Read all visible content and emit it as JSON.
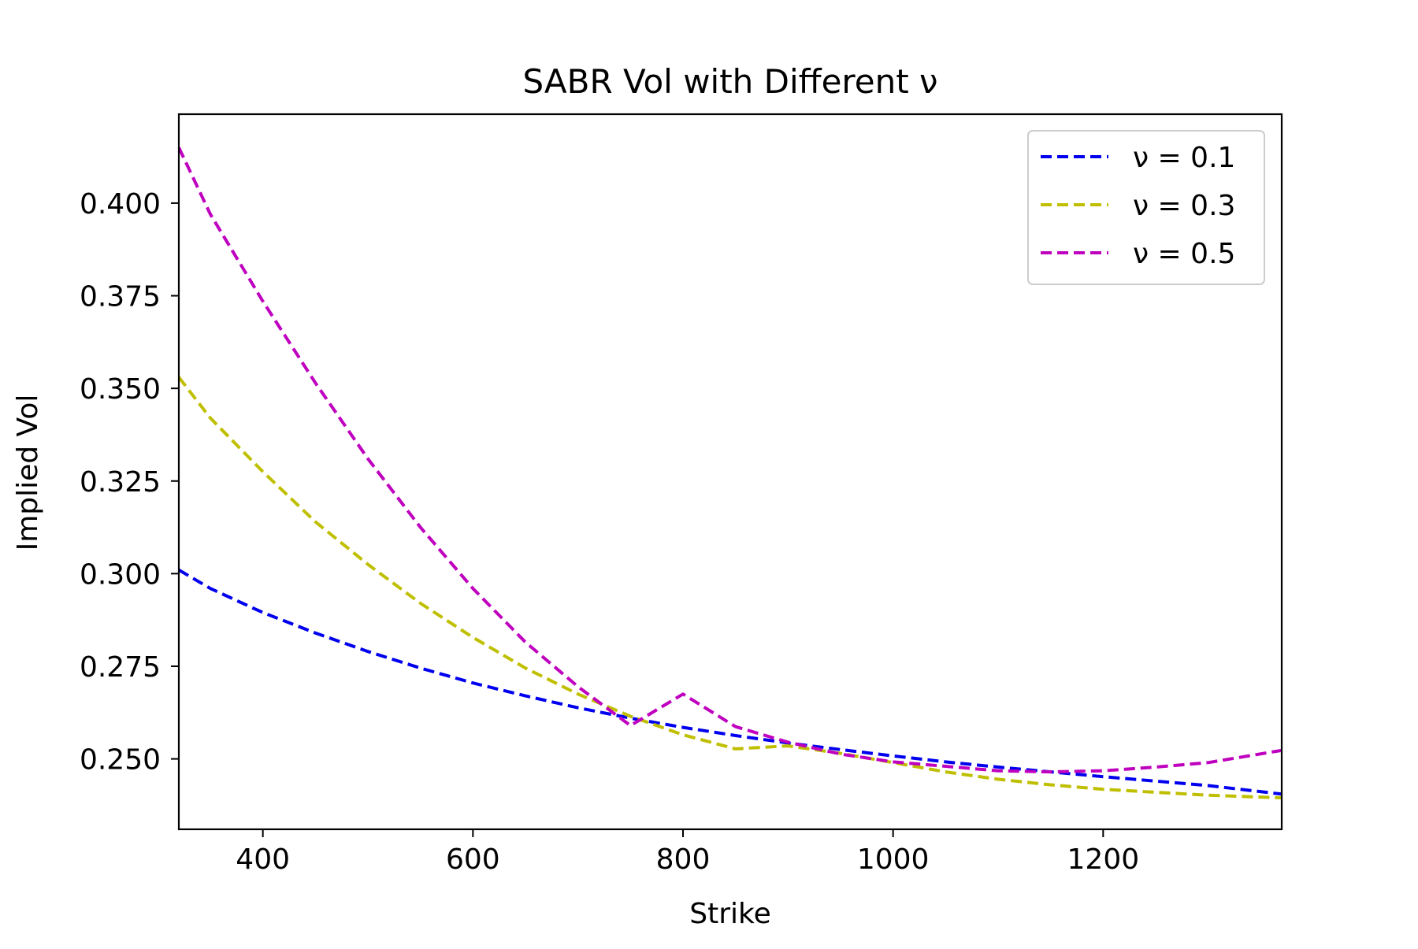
{
  "chart_data": {
    "type": "line",
    "title": "SABR Vol with Different ν",
    "xlabel": "Strike",
    "ylabel": "Implied Vol",
    "xlim": [
      320,
      1370
    ],
    "ylim": [
      0.231,
      0.424
    ],
    "xticks": [
      400,
      600,
      800,
      1000,
      1200
    ],
    "xtick_labels": [
      "400",
      "600",
      "800",
      "1000",
      "1200"
    ],
    "yticks": [
      0.25,
      0.275,
      0.3,
      0.325,
      0.35,
      0.375,
      0.4
    ],
    "ytick_labels": [
      "0.250",
      "0.275",
      "0.300",
      "0.325",
      "0.350",
      "0.375",
      "0.400"
    ],
    "grid": false,
    "legend_position": "top-right",
    "line_style": "dashed",
    "x": [
      320,
      350,
      400,
      450,
      500,
      550,
      600,
      650,
      700,
      750,
      800,
      850,
      900,
      950,
      1000,
      1050,
      1100,
      1150,
      1200,
      1250,
      1300,
      1370
    ],
    "series": [
      {
        "name": "ν = 0.1",
        "color": "#0000ee",
        "values": [
          0.301,
          0.296,
          0.2895,
          0.284,
          0.279,
          0.2745,
          0.2705,
          0.267,
          0.2638,
          0.261,
          0.2585,
          0.2563,
          0.2543,
          0.2525,
          0.2508,
          0.2492,
          0.2478,
          0.2465,
          0.2452,
          0.244,
          0.2428,
          0.2405
        ]
      },
      {
        "name": "ν = 0.3",
        "color": "#bfbf00",
        "values": [
          0.353,
          0.342,
          0.3275,
          0.314,
          0.3025,
          0.292,
          0.2828,
          0.2745,
          0.2675,
          0.2615,
          0.2565,
          0.2527,
          0.2535,
          0.2515,
          0.249,
          0.2465,
          0.2445,
          0.243,
          0.2418,
          0.241,
          0.2402,
          0.2395
        ]
      },
      {
        "name": "ν = 0.5",
        "color": "#bf00bf",
        "values": [
          0.415,
          0.397,
          0.3735,
          0.3515,
          0.331,
          0.3125,
          0.296,
          0.2815,
          0.2695,
          0.259,
          0.2675,
          0.2587,
          0.2545,
          0.2513,
          0.2492,
          0.248,
          0.2468,
          0.2465,
          0.2468,
          0.2478,
          0.249,
          0.2523
        ]
      }
    ]
  }
}
